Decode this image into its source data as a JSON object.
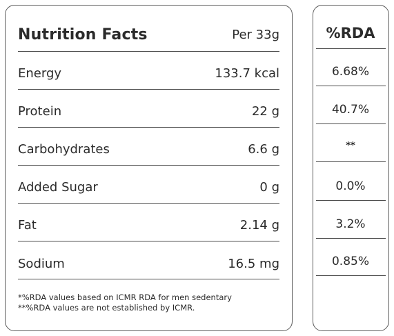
{
  "nutrition": {
    "title": "Nutrition Facts",
    "per": "Per 33g",
    "rows": [
      {
        "label": "Energy",
        "value": "133.7 kcal"
      },
      {
        "label": "Protein",
        "value": "22 g"
      },
      {
        "label": "Carbohydrates",
        "value": "6.6 g"
      },
      {
        "label": "Added Sugar",
        "value": "0 g"
      },
      {
        "label": "Fat",
        "value": "2.14 g"
      },
      {
        "label": "Sodium",
        "value": "16.5 mg"
      }
    ],
    "footnotes": [
      "*%RDA values based on ICMR RDA for men sedentary",
      "**%RDA values are not established by ICMR."
    ]
  },
  "rda": {
    "header": "%RDA",
    "values": [
      "6.68%",
      "40.7%",
      "**",
      "0.0%",
      "3.2%",
      "0.85%"
    ]
  },
  "colors": {
    "border": "#5a5a5a",
    "text": "#2b2b2b",
    "background": "#ffffff"
  }
}
